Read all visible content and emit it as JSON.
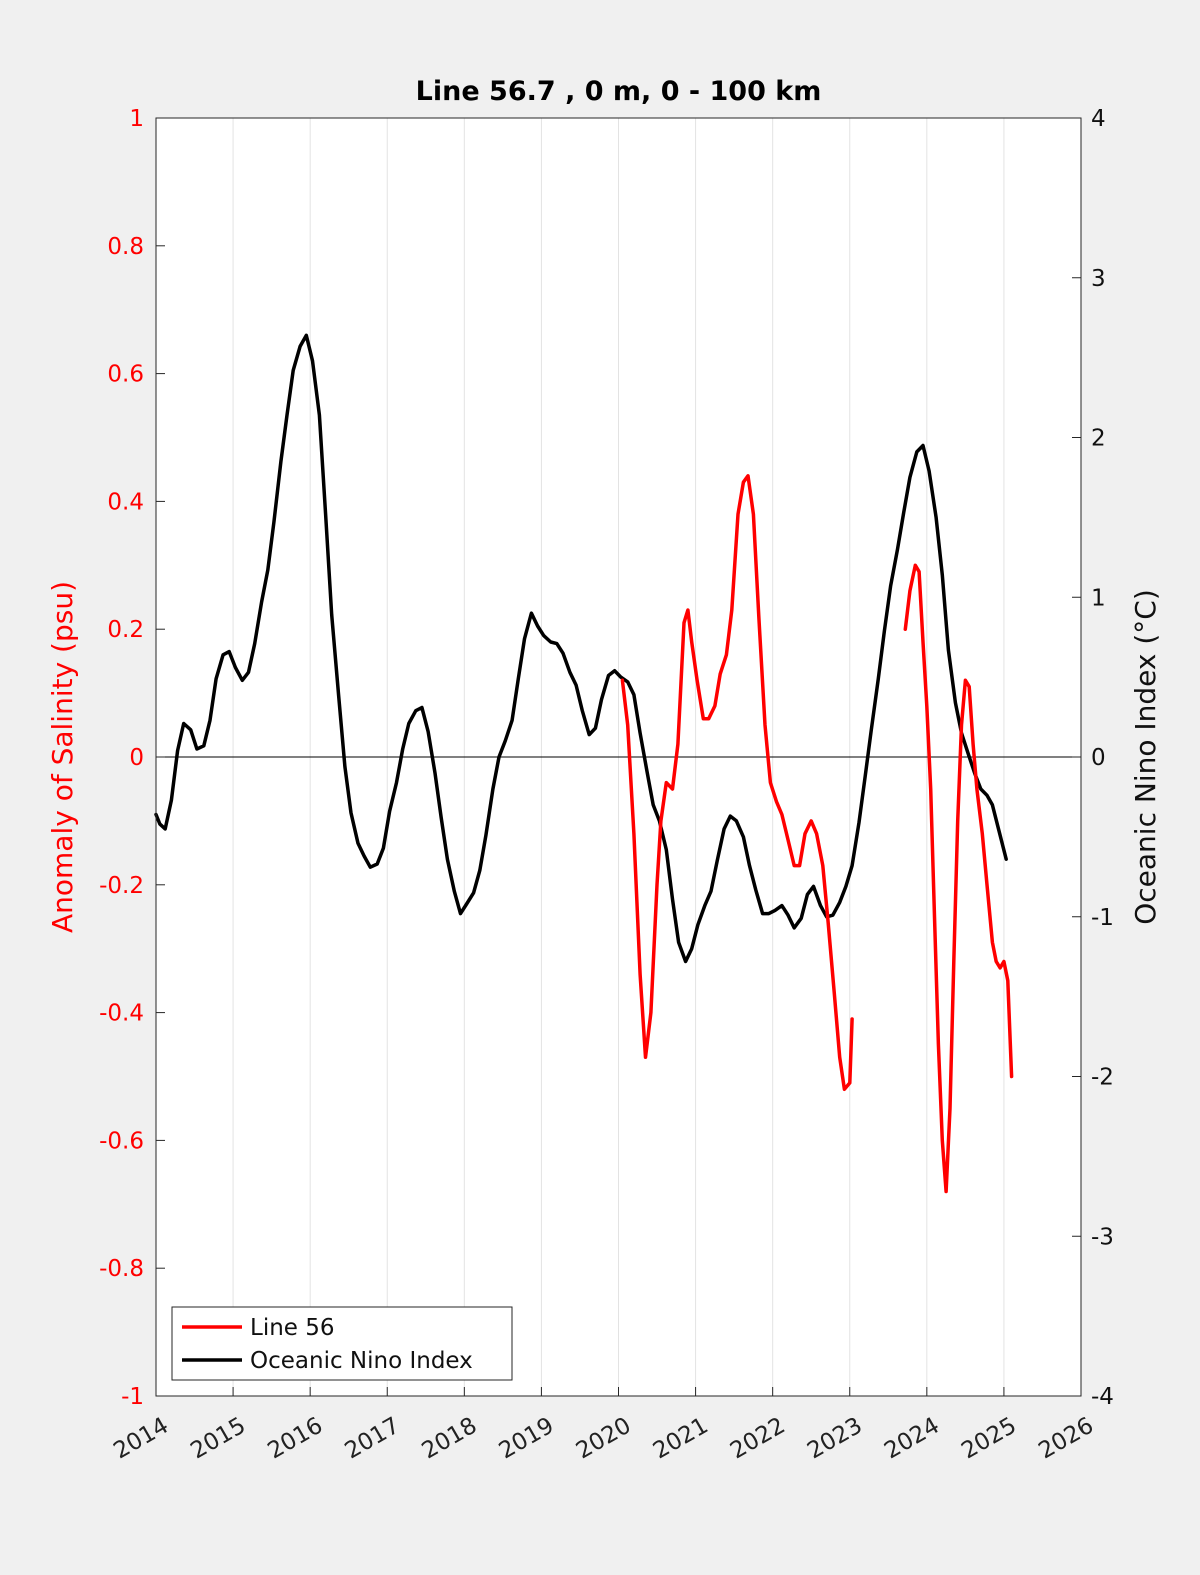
{
  "chart_data": {
    "type": "line",
    "title": "Line 56.7 , 0 m, 0 - 100 km",
    "ylabel_left": "Anomaly of Salinity (psu)",
    "ylabel_right": "Oceanic Nino Index (°C)",
    "xlim": [
      2014,
      2026
    ],
    "ylim_left": [
      -1,
      1
    ],
    "ylim_right": [
      -4,
      4
    ],
    "x_ticks": [
      "2014",
      "2015",
      "2016",
      "2017",
      "2018",
      "2019",
      "2020",
      "2021",
      "2022",
      "2023",
      "2024",
      "2025",
      "2026"
    ],
    "y_left_ticks": [
      "1",
      "0.8",
      "0.6",
      "0.4",
      "0.2",
      "0",
      "-0.2",
      "-0.4",
      "-0.6",
      "-0.8",
      "-1"
    ],
    "y_right_ticks": [
      "4",
      "3",
      "2",
      "1",
      "0",
      "-1",
      "-2",
      "-3",
      "-4"
    ],
    "grid": "vertical",
    "legend_position": "bottom-left",
    "colors": {
      "salinity": "#ff0000",
      "oni": "#000000"
    },
    "series": [
      {
        "name": "Line 56",
        "axis": "left",
        "segments": [
          [
            [
              2020.05,
              0.12
            ],
            [
              2020.12,
              0.05
            ],
            [
              2020.2,
              -0.12
            ],
            [
              2020.28,
              -0.34
            ],
            [
              2020.35,
              -0.47
            ],
            [
              2020.42,
              -0.4
            ],
            [
              2020.5,
              -0.2
            ],
            [
              2020.55,
              -0.1
            ],
            [
              2020.62,
              -0.04
            ],
            [
              2020.7,
              -0.05
            ],
            [
              2020.77,
              0.02
            ],
            [
              2020.85,
              0.21
            ],
            [
              2020.9,
              0.23
            ],
            [
              2020.95,
              0.18
            ],
            [
              2021.02,
              0.12
            ],
            [
              2021.1,
              0.06
            ],
            [
              2021.17,
              0.06
            ],
            [
              2021.25,
              0.08
            ],
            [
              2021.32,
              0.13
            ],
            [
              2021.4,
              0.16
            ],
            [
              2021.47,
              0.23
            ],
            [
              2021.55,
              0.38
            ],
            [
              2021.62,
              0.43
            ],
            [
              2021.68,
              0.44
            ],
            [
              2021.75,
              0.38
            ],
            [
              2021.82,
              0.22
            ],
            [
              2021.9,
              0.05
            ],
            [
              2021.97,
              -0.04
            ],
            [
              2022.05,
              -0.07
            ],
            [
              2022.12,
              -0.09
            ],
            [
              2022.2,
              -0.13
            ],
            [
              2022.28,
              -0.17
            ],
            [
              2022.35,
              -0.17
            ],
            [
              2022.42,
              -0.12
            ],
            [
              2022.5,
              -0.1
            ],
            [
              2022.57,
              -0.12
            ],
            [
              2022.65,
              -0.17
            ],
            [
              2022.72,
              -0.26
            ],
            [
              2022.8,
              -0.37
            ],
            [
              2022.87,
              -0.47
            ],
            [
              2022.93,
              -0.52
            ],
            [
              2023.0,
              -0.51
            ],
            [
              2023.03,
              -0.41
            ]
          ],
          [
            [
              2023.72,
              0.2
            ],
            [
              2023.78,
              0.26
            ],
            [
              2023.85,
              0.3
            ],
            [
              2023.9,
              0.29
            ],
            [
              2023.95,
              0.18
            ],
            [
              2024.0,
              0.08
            ],
            [
              2024.05,
              -0.05
            ],
            [
              2024.1,
              -0.25
            ],
            [
              2024.15,
              -0.45
            ],
            [
              2024.2,
              -0.6
            ],
            [
              2024.25,
              -0.68
            ],
            [
              2024.3,
              -0.55
            ],
            [
              2024.35,
              -0.32
            ],
            [
              2024.4,
              -0.1
            ],
            [
              2024.45,
              0.05
            ],
            [
              2024.5,
              0.12
            ],
            [
              2024.55,
              0.11
            ],
            [
              2024.6,
              0.02
            ],
            [
              2024.65,
              -0.05
            ],
            [
              2024.72,
              -0.12
            ],
            [
              2024.78,
              -0.2
            ],
            [
              2024.85,
              -0.29
            ],
            [
              2024.9,
              -0.32
            ],
            [
              2024.95,
              -0.33
            ],
            [
              2025.0,
              -0.32
            ],
            [
              2025.05,
              -0.35
            ],
            [
              2025.1,
              -0.5
            ]
          ]
        ]
      },
      {
        "name": "Oceanic Nino Index",
        "axis": "right",
        "segments": [
          [
            [
              2014.0,
              -0.36
            ],
            [
              2014.05,
              -0.42
            ],
            [
              2014.12,
              -0.45
            ],
            [
              2014.2,
              -0.27
            ],
            [
              2014.28,
              0.04
            ],
            [
              2014.36,
              0.21
            ],
            [
              2014.45,
              0.17
            ],
            [
              2014.53,
              0.05
            ],
            [
              2014.62,
              0.07
            ],
            [
              2014.7,
              0.23
            ],
            [
              2014.78,
              0.49
            ],
            [
              2014.87,
              0.64
            ],
            [
              2014.95,
              0.66
            ],
            [
              2015.03,
              0.56
            ],
            [
              2015.12,
              0.48
            ],
            [
              2015.2,
              0.53
            ],
            [
              2015.28,
              0.71
            ],
            [
              2015.37,
              0.97
            ],
            [
              2015.45,
              1.17
            ],
            [
              2015.53,
              1.47
            ],
            [
              2015.62,
              1.85
            ],
            [
              2015.7,
              2.14
            ],
            [
              2015.78,
              2.42
            ],
            [
              2015.87,
              2.57
            ],
            [
              2015.95,
              2.64
            ],
            [
              2016.03,
              2.48
            ],
            [
              2016.12,
              2.14
            ],
            [
              2016.2,
              1.52
            ],
            [
              2016.28,
              0.89
            ],
            [
              2016.37,
              0.38
            ],
            [
              2016.45,
              -0.06
            ],
            [
              2016.53,
              -0.35
            ],
            [
              2016.62,
              -0.54
            ],
            [
              2016.7,
              -0.62
            ],
            [
              2016.78,
              -0.69
            ],
            [
              2016.87,
              -0.67
            ],
            [
              2016.95,
              -0.57
            ],
            [
              2017.03,
              -0.34
            ],
            [
              2017.12,
              -0.16
            ],
            [
              2017.2,
              0.05
            ],
            [
              2017.28,
              0.21
            ],
            [
              2017.37,
              0.29
            ],
            [
              2017.45,
              0.31
            ],
            [
              2017.53,
              0.16
            ],
            [
              2017.62,
              -0.1
            ],
            [
              2017.7,
              -0.38
            ],
            [
              2017.78,
              -0.64
            ],
            [
              2017.87,
              -0.84
            ],
            [
              2017.95,
              -0.98
            ],
            [
              2018.03,
              -0.92
            ],
            [
              2018.12,
              -0.85
            ],
            [
              2018.2,
              -0.71
            ],
            [
              2018.28,
              -0.49
            ],
            [
              2018.37,
              -0.2
            ],
            [
              2018.45,
              0.0
            ],
            [
              2018.53,
              0.1
            ],
            [
              2018.62,
              0.23
            ],
            [
              2018.7,
              0.49
            ],
            [
              2018.78,
              0.74
            ],
            [
              2018.87,
              0.9
            ],
            [
              2018.95,
              0.82
            ],
            [
              2019.03,
              0.76
            ],
            [
              2019.12,
              0.72
            ],
            [
              2019.2,
              0.71
            ],
            [
              2019.28,
              0.65
            ],
            [
              2019.37,
              0.53
            ],
            [
              2019.45,
              0.45
            ],
            [
              2019.53,
              0.29
            ],
            [
              2019.62,
              0.14
            ],
            [
              2019.7,
              0.18
            ],
            [
              2019.78,
              0.36
            ],
            [
              2019.87,
              0.51
            ],
            [
              2019.95,
              0.54
            ],
            [
              2020.03,
              0.5
            ],
            [
              2020.12,
              0.47
            ],
            [
              2020.2,
              0.39
            ],
            [
              2020.28,
              0.15
            ],
            [
              2020.37,
              -0.09
            ],
            [
              2020.45,
              -0.3
            ],
            [
              2020.53,
              -0.4
            ],
            [
              2020.62,
              -0.58
            ],
            [
              2020.7,
              -0.89
            ],
            [
              2020.78,
              -1.16
            ],
            [
              2020.87,
              -1.28
            ],
            [
              2020.95,
              -1.2
            ],
            [
              2021.03,
              -1.05
            ],
            [
              2021.12,
              -0.93
            ],
            [
              2021.2,
              -0.84
            ],
            [
              2021.28,
              -0.65
            ],
            [
              2021.37,
              -0.45
            ],
            [
              2021.45,
              -0.37
            ],
            [
              2021.53,
              -0.4
            ],
            [
              2021.62,
              -0.5
            ],
            [
              2021.7,
              -0.68
            ],
            [
              2021.78,
              -0.83
            ],
            [
              2021.87,
              -0.98
            ],
            [
              2021.95,
              -0.98
            ],
            [
              2022.03,
              -0.96
            ],
            [
              2022.12,
              -0.93
            ],
            [
              2022.2,
              -0.99
            ],
            [
              2022.28,
              -1.07
            ],
            [
              2022.37,
              -1.01
            ],
            [
              2022.45,
              -0.86
            ],
            [
              2022.53,
              -0.81
            ],
            [
              2022.62,
              -0.93
            ],
            [
              2022.7,
              -1.0
            ],
            [
              2022.78,
              -0.99
            ],
            [
              2022.87,
              -0.91
            ],
            [
              2022.95,
              -0.81
            ],
            [
              2023.03,
              -0.68
            ],
            [
              2023.12,
              -0.41
            ],
            [
              2023.2,
              -0.12
            ],
            [
              2023.28,
              0.17
            ],
            [
              2023.37,
              0.49
            ],
            [
              2023.45,
              0.79
            ],
            [
              2023.53,
              1.07
            ],
            [
              2023.62,
              1.3
            ],
            [
              2023.7,
              1.53
            ],
            [
              2023.78,
              1.75
            ],
            [
              2023.87,
              1.91
            ],
            [
              2023.95,
              1.95
            ],
            [
              2024.03,
              1.79
            ],
            [
              2024.12,
              1.5
            ],
            [
              2024.2,
              1.14
            ],
            [
              2024.28,
              0.67
            ],
            [
              2024.37,
              0.34
            ],
            [
              2024.45,
              0.15
            ],
            [
              2024.53,
              0.03
            ],
            [
              2024.62,
              -0.1
            ],
            [
              2024.7,
              -0.2
            ],
            [
              2024.78,
              -0.24
            ],
            [
              2024.85,
              -0.3
            ],
            [
              2024.93,
              -0.45
            ],
            [
              2025.03,
              -0.64
            ]
          ]
        ]
      }
    ]
  }
}
